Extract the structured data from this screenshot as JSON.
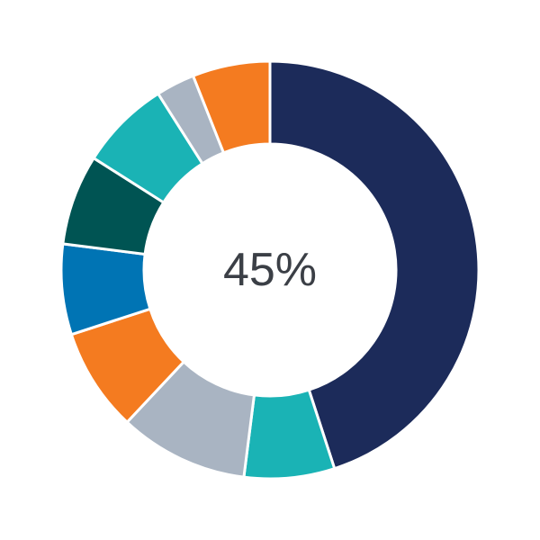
{
  "chart_data": {
    "type": "pie",
    "donut": true,
    "center_label": "45%",
    "start": "top",
    "direction": "clockwise",
    "values": [
      45,
      7,
      10,
      8,
      7,
      7,
      7,
      3,
      6
    ],
    "colors": [
      "#1c2b5a",
      "#1ab3b5",
      "#a9b4c2",
      "#f47b20",
      "#0074b4",
      "#005453",
      "#1ab3b5",
      "#a9b4c2",
      "#f47b20"
    ]
  }
}
